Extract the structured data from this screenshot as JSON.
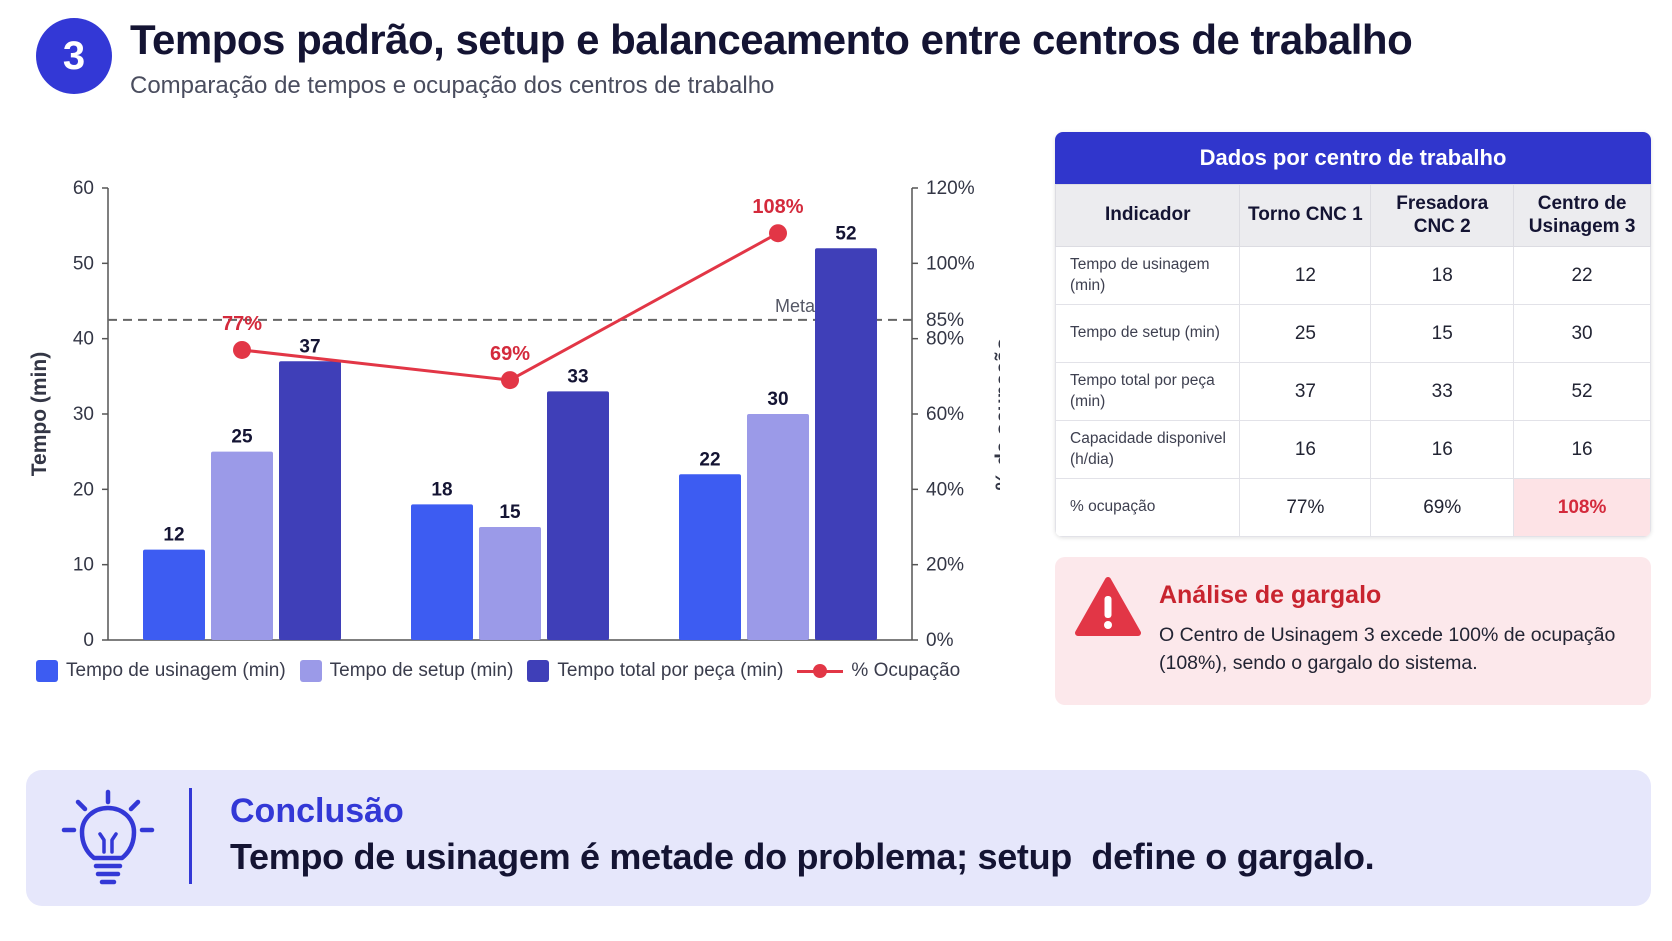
{
  "header": {
    "step_number": "3",
    "title": "Tempos padrão, setup e balanceamento entre centros de trabalho",
    "subtitle": "Comparação de tempos e ocupação dos centros de trabalho"
  },
  "colors": {
    "accent": "#3338d6",
    "usinagem": "#3d5cf2",
    "setup": "#9b9ae8",
    "total": "#3f3fb8",
    "ocupacao": "#e23646",
    "alert": "#c8242f"
  },
  "chart_data": {
    "type": "bar",
    "categories": [
      "Torno CNC 1",
      "Fresadora CNC 2",
      "Centro de Usinagem 3"
    ],
    "series": [
      {
        "name": "Tempo de usinagem (min)",
        "values": [
          12,
          18,
          22
        ],
        "color": "#3d5cf2"
      },
      {
        "name": "Tempo de setup (min)",
        "values": [
          25,
          15,
          30
        ],
        "color": "#9b9ae8"
      },
      {
        "name": "Tempo total por peça (min)",
        "values": [
          37,
          33,
          52
        ],
        "color": "#3f3fb8"
      }
    ],
    "line_series": {
      "name": "% Ocupação",
      "values": [
        77,
        69,
        108
      ],
      "labels": [
        "77%",
        "69%",
        "108%"
      ],
      "color": "#e23646"
    },
    "ylabel": "Tempo (min)",
    "y2label": "% de ocupação",
    "ylim": [
      0,
      60
    ],
    "y_ticks": [
      0,
      10,
      20,
      30,
      40,
      50,
      60
    ],
    "y2lim": [
      0,
      120
    ],
    "y2_ticks": [
      "0%",
      "20%",
      "40%",
      "60%",
      "80%",
      "100%",
      "120%"
    ],
    "y2_extra_tick": {
      "value": 85,
      "label": "85%"
    },
    "reference_line": {
      "value": 85,
      "label": "Meta %"
    },
    "legend_position": "bottom",
    "grid": false
  },
  "table": {
    "header": "Dados por centro de trabalho",
    "columns": [
      "Indicador",
      "Torno CNC 1",
      "Fresadora CNC 2",
      "Centro de Usinagem 3"
    ],
    "rows": [
      {
        "label": "Tempo de usinagem (min)",
        "values": [
          "12",
          "18",
          "22"
        ]
      },
      {
        "label": "Tempo de setup (min)",
        "values": [
          "25",
          "15",
          "30"
        ]
      },
      {
        "label": "Tempo total por peça (min)",
        "values": [
          "37",
          "33",
          "52"
        ]
      },
      {
        "label": "Capacidade disponivel (h/dia)",
        "values": [
          "16",
          "16",
          "16"
        ]
      },
      {
        "label": "% ocupação",
        "values": [
          "77%",
          "69%",
          "108%"
        ]
      }
    ]
  },
  "alert": {
    "title": "Análise de gargalo",
    "text": "O Centro de Usinagem 3 excede 100% de ocupação (108%), sendo o gargalo do sistema."
  },
  "conclusion": {
    "label": "Conclusão",
    "text": "Tempo de usinagem é metade do problema; setup  define o gargalo."
  }
}
